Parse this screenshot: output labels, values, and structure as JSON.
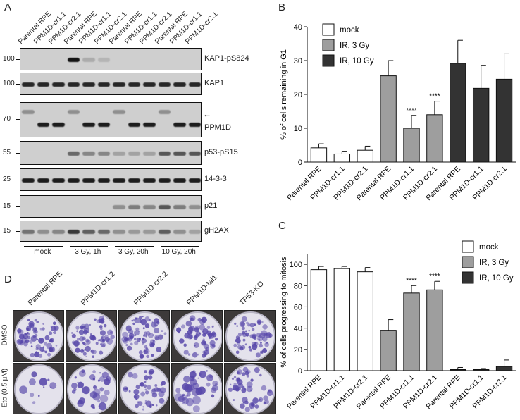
{
  "panel_letters": {
    "a": "A",
    "b": "B",
    "c": "C",
    "d": "D"
  },
  "blot": {
    "lanes": [
      "Parental RPE",
      "PPM1D-cr1.1",
      "PPM1D-cr2.1",
      "Parental RPE",
      "PPM1D-cr1.1",
      "PPM1D-cr2.1",
      "Parental RPE",
      "PPM1D-cr1.1",
      "PPM1D-cr2.1",
      "Parental RPE",
      "PPM1D-cr1.1",
      "PPM1D-cr2.1"
    ],
    "rows": [
      {
        "label": "KAP1-pS824",
        "mw": "100",
        "intensities": [
          0,
          0,
          0,
          0.95,
          0.15,
          0.1,
          0,
          0,
          0,
          0,
          0,
          0
        ]
      },
      {
        "label": "KAP1",
        "mw": "100",
        "intensities": [
          0.85,
          0.85,
          0.85,
          0.85,
          0.85,
          0.85,
          0.85,
          0.85,
          0.85,
          0.85,
          0.85,
          0.85
        ]
      },
      {
        "label": "PPM1D",
        "mw": "70",
        "intensities": [
          0.3,
          0.9,
          0.9,
          0.3,
          0.9,
          0.9,
          0.3,
          0.9,
          0.9,
          0.3,
          0.9,
          0.9
        ]
      },
      {
        "label": "p53-pS15",
        "mw": "55",
        "intensities": [
          0,
          0,
          0,
          0.5,
          0.35,
          0.35,
          0.2,
          0.2,
          0.2,
          0.6,
          0.6,
          0.6
        ]
      },
      {
        "label": "14-3-3",
        "mw": "25",
        "intensities": [
          0.9,
          0.9,
          0.9,
          0.9,
          0.9,
          0.9,
          0.9,
          0.9,
          0.9,
          0.9,
          0.9,
          0.9
        ]
      },
      {
        "label": "p21",
        "mw": "15",
        "intensities": [
          0,
          0,
          0,
          0,
          0,
          0,
          0.3,
          0.4,
          0.35,
          0.6,
          0.4,
          0.3
        ]
      },
      {
        "label": "gH2AX",
        "mw": "15",
        "intensities": [
          0.45,
          0.3,
          0.35,
          0.75,
          0.55,
          0.5,
          0.3,
          0.25,
          0.25,
          0.55,
          0.3,
          0.2
        ]
      }
    ],
    "conditions": [
      "mock",
      "3 Gy, 1h",
      "3 Gy, 20h",
      "10 Gy, 20h"
    ],
    "arrow": "←"
  },
  "colonies": {
    "columns": [
      "Parental RPE",
      "PPM1D-cr1.2",
      "PPM1D-cr2.2",
      "PPM1D-tal1",
      "TP53-KO"
    ],
    "rows": [
      "DMSO",
      "Eto (0.5 µM)"
    ],
    "survival": [
      [
        0.85,
        0.85,
        0.9,
        0.75,
        0.8
      ],
      [
        0.02,
        0.35,
        0.6,
        0.45,
        0.6
      ]
    ]
  },
  "chart_data": [
    {
      "type": "bar",
      "panel": "B",
      "ylabel": "% of cells remaining in G1",
      "ylim": [
        0,
        40
      ],
      "yticks": [
        0,
        10,
        20,
        30,
        40
      ],
      "categories": [
        "Parental RPE",
        "PPM1D-cr1.1",
        "PPM1D-cr2.1",
        "Parental RPE",
        "PPM1D-cr1.1",
        "PPM1D-cr2.1",
        "Parental RPE",
        "PPM1D-cr1.1",
        "PPM1D-cr2.1"
      ],
      "groups": [
        "mock",
        "mock",
        "mock",
        "IR, 3 Gy",
        "IR, 3 Gy",
        "IR, 3 Gy",
        "IR, 10 Gy",
        "IR, 10 Gy",
        "IR, 10 Gy"
      ],
      "values": [
        4.2,
        2.4,
        3.5,
        25.5,
        10,
        14,
        29.2,
        21.8,
        24.5
      ],
      "errors": [
        1.2,
        0.8,
        1.2,
        4.5,
        3.8,
        4,
        6.8,
        6.8,
        7.5
      ],
      "significance": [
        "",
        "",
        "",
        "",
        "****",
        "****",
        "",
        "",
        ""
      ],
      "legend": [
        {
          "name": "mock",
          "color": "#ffffff"
        },
        {
          "name": "IR, 3 Gy",
          "color": "#9e9e9e"
        },
        {
          "name": "IR, 10 Gy",
          "color": "#333333"
        }
      ],
      "legend_position": "top-left"
    },
    {
      "type": "bar",
      "panel": "C",
      "ylabel": "% of cells progressing to mitosis",
      "ylim": [
        0,
        110
      ],
      "yticks": [
        0,
        20,
        40,
        60,
        80,
        100
      ],
      "categories": [
        "Parental RPE",
        "PPM1D-cr1.1",
        "PPM1D-cr2.1",
        "Parental RPE",
        "PPM1D-cr1.1",
        "PPM1D-cr2.1",
        "Parental RPE",
        "PPM1D-cr1.1",
        "PPM1D-cr2.1"
      ],
      "groups": [
        "mock",
        "mock",
        "mock",
        "IR, 3 Gy",
        "IR, 3 Gy",
        "IR, 3 Gy",
        "IR, 10 Gy",
        "IR, 10 Gy",
        "IR, 10 Gy"
      ],
      "values": [
        95,
        96,
        93,
        38,
        73,
        76,
        1,
        1,
        4
      ],
      "errors": [
        3,
        2,
        4,
        10,
        7,
        8,
        2,
        1,
        6
      ],
      "significance": [
        "",
        "",
        "",
        "",
        "****",
        "****",
        "",
        "",
        ""
      ],
      "legend": [
        {
          "name": "mock",
          "color": "#ffffff"
        },
        {
          "name": "IR, 3 Gy",
          "color": "#9e9e9e"
        },
        {
          "name": "IR, 10 Gy",
          "color": "#333333"
        }
      ],
      "legend_position": "top-right"
    }
  ]
}
